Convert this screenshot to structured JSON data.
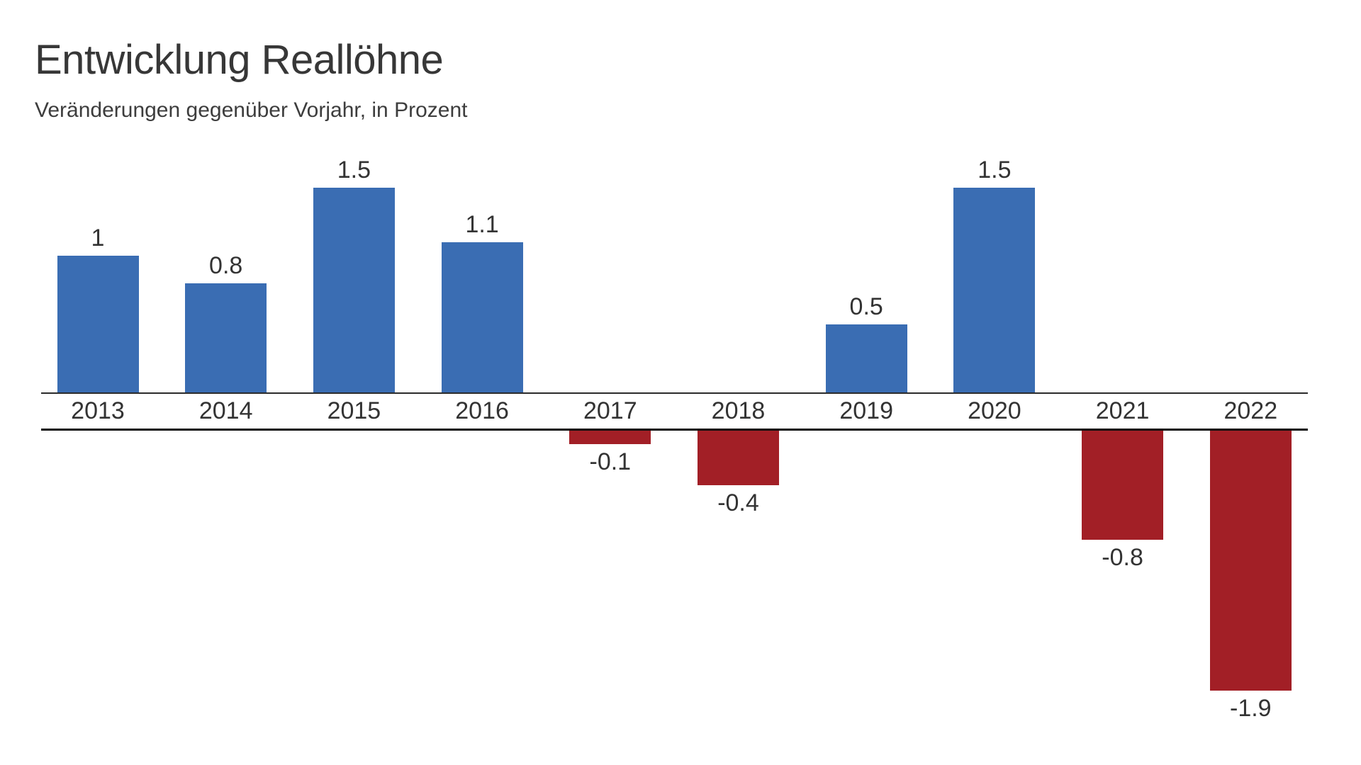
{
  "header": {
    "title": "Entwicklung Reallöhne",
    "subtitle": "Veränderungen gegenüber Vorjahr, in Prozent"
  },
  "chart_data": {
    "type": "bar",
    "title": "Entwicklung Reallöhne",
    "subtitle": "Veränderungen gegenüber Vorjahr, in Prozent",
    "categories": [
      "2013",
      "2014",
      "2015",
      "2016",
      "2017",
      "2018",
      "2019",
      "2020",
      "2021",
      "2022"
    ],
    "values": [
      1,
      0.8,
      1.5,
      1.1,
      -0.1,
      -0.4,
      0.5,
      1.5,
      -0.8,
      -1.9
    ],
    "value_labels": [
      "1",
      "0.8",
      "1.5",
      "1.1",
      "-0.1",
      "-0.4",
      "0.5",
      "1.5",
      "-0.8",
      "-1.9"
    ],
    "xlabel": "",
    "ylabel": "",
    "unit": "Prozent",
    "ylim": [
      -2.0,
      1.6
    ],
    "grid": false,
    "legend": false,
    "layout_note": "split baseline: positive bars stand on upper axis line, negative bars hang from lower axis line, year labels sit between the two lines",
    "colors": {
      "positive_bar": "#3a6db3",
      "negative_bar": "#a21f26",
      "axis_line_upper": "#2b2b2b",
      "axis_line_lower": "#0a0a0a",
      "text": "#333333",
      "background": "#ffffff"
    }
  }
}
